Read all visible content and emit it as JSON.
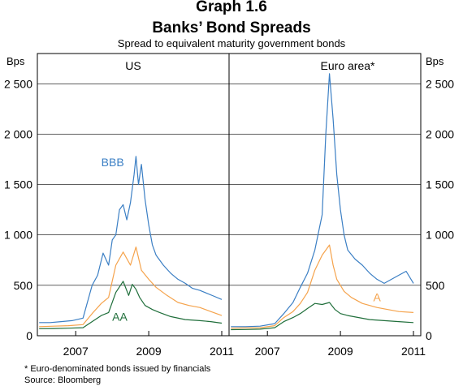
{
  "chart_data": {
    "type": "line",
    "title_partial": "Graph 1.6",
    "title": "Banks’ Bond Spreads",
    "subtitle": "Spread to equivalent maturity government bonds",
    "unit_left": "Bps",
    "unit_right": "Bps",
    "ylim": [
      0,
      2800
    ],
    "y_ticks": [
      0,
      500,
      1000,
      1500,
      2000,
      2500
    ],
    "y_tick_labels": [
      "0",
      "500",
      "1 000",
      "1 500",
      "2 000",
      "2 500"
    ],
    "x_ticks": [
      2007,
      2009,
      2011
    ],
    "x_tick_labels": [
      "2007",
      "2009",
      "2011"
    ],
    "grid": "horizontal",
    "colors": {
      "BBB": "#3b7fc4",
      "A": "#f5a34c",
      "AA": "#1f6e3a"
    },
    "panels": [
      {
        "title": "US",
        "xlim": [
          2005.95,
          2011.2
        ],
        "series": [
          {
            "name": "BBB",
            "x": [
              2006.0,
              2006.3,
              2006.6,
              2006.9,
              2007.2,
              2007.45,
              2007.6,
              2007.75,
              2007.9,
              2008.0,
              2008.1,
              2008.2,
              2008.3,
              2008.4,
              2008.5,
              2008.6,
              2008.65,
              2008.72,
              2008.8,
              2008.9,
              2009.0,
              2009.1,
              2009.2,
              2009.4,
              2009.6,
              2009.8,
              2010.0,
              2010.2,
              2010.4,
              2010.6,
              2010.8,
              2011.0
            ],
            "values": [
              130,
              130,
              140,
              150,
              175,
              500,
              600,
              820,
              700,
              950,
              1000,
              1250,
              1300,
              1150,
              1320,
              1600,
              1780,
              1500,
              1700,
              1350,
              1100,
              900,
              800,
              700,
              620,
              560,
              520,
              470,
              450,
              420,
              390,
              360
            ]
          },
          {
            "name": "A",
            "x": [
              2006.0,
              2006.4,
              2006.8,
              2007.2,
              2007.45,
              2007.7,
              2007.9,
              2008.1,
              2008.3,
              2008.5,
              2008.65,
              2008.8,
              2009.0,
              2009.2,
              2009.5,
              2009.8,
              2010.1,
              2010.4,
              2010.7,
              2011.0
            ],
            "values": [
              90,
              95,
              100,
              110,
              220,
              320,
              380,
              700,
              830,
              700,
              880,
              650,
              560,
              480,
              400,
              330,
              300,
              280,
              240,
              200
            ]
          },
          {
            "name": "AA",
            "x": [
              2006.0,
              2006.4,
              2006.8,
              2007.2,
              2007.45,
              2007.7,
              2007.9,
              2008.1,
              2008.3,
              2008.45,
              2008.55,
              2008.65,
              2008.75,
              2008.9,
              2009.1,
              2009.3,
              2009.6,
              2010.0,
              2010.4,
              2010.7,
              2011.0
            ],
            "values": [
              70,
              72,
              75,
              80,
              140,
              200,
              230,
              430,
              540,
              400,
              510,
              460,
              380,
              300,
              260,
              230,
              190,
              160,
              150,
              140,
              125
            ]
          }
        ],
        "labels": [
          {
            "text": "BBB",
            "x": 2007.7,
            "y": 1680
          },
          {
            "text": "AA",
            "x": 2008.0,
            "y": 150
          }
        ]
      },
      {
        "title": "Euro area*",
        "xlim": [
          2005.95,
          2011.2
        ],
        "series": [
          {
            "name": "BBB",
            "x": [
              2006.0,
              2006.4,
              2006.8,
              2007.2,
              2007.45,
              2007.7,
              2007.9,
              2008.1,
              2008.3,
              2008.5,
              2008.6,
              2008.7,
              2008.8,
              2008.9,
              2009.0,
              2009.1,
              2009.2,
              2009.4,
              2009.6,
              2009.8,
              2010.0,
              2010.2,
              2010.4,
              2010.6,
              2010.8,
              2011.0
            ],
            "values": [
              90,
              90,
              95,
              120,
              220,
              330,
              480,
              620,
              850,
              1200,
              2000,
              2600,
              2150,
              1600,
              1250,
              1000,
              850,
              760,
              700,
              620,
              560,
              520,
              560,
              600,
              640,
              520
            ]
          },
          {
            "name": "A",
            "x": [
              2006.0,
              2006.4,
              2006.8,
              2007.2,
              2007.45,
              2007.7,
              2007.9,
              2008.1,
              2008.3,
              2008.5,
              2008.6,
              2008.7,
              2008.8,
              2008.9,
              2009.1,
              2009.3,
              2009.6,
              2010.0,
              2010.3,
              2010.6,
              2011.0
            ],
            "values": [
              75,
              78,
              80,
              100,
              180,
              240,
              320,
              430,
              650,
              800,
              850,
              900,
              700,
              560,
              440,
              380,
              320,
              280,
              260,
              240,
              230
            ]
          },
          {
            "name": "AA",
            "x": [
              2006.0,
              2006.4,
              2006.8,
              2007.2,
              2007.45,
              2007.7,
              2007.9,
              2008.1,
              2008.3,
              2008.5,
              2008.7,
              2008.85,
              2009.0,
              2009.2,
              2009.5,
              2009.8,
              2010.2,
              2010.6,
              2011.0
            ],
            "values": [
              60,
              62,
              65,
              80,
              140,
              180,
              220,
              270,
              320,
              310,
              330,
              260,
              220,
              200,
              180,
              160,
              150,
              140,
              130
            ]
          }
        ],
        "labels": [
          {
            "text": "A",
            "x": 2009.9,
            "y": 340
          }
        ]
      }
    ],
    "footnotes": [
      "*   Euro-denominated bonds issued by financials",
      "Source: Bloomberg"
    ]
  }
}
